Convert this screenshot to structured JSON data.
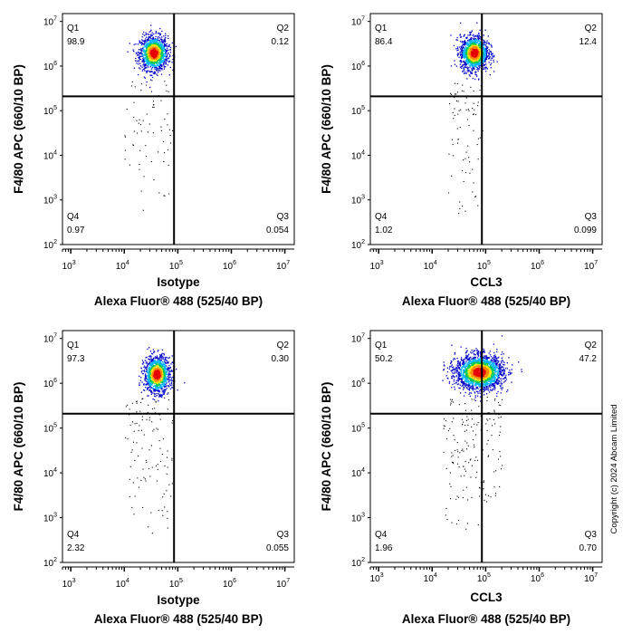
{
  "copyright": "Copyright (c) 2024 Abcam Limited",
  "colors": {
    "density_scale": [
      "#0000c8",
      "#00b4ff",
      "#00c850",
      "#ffe600",
      "#ff8c00",
      "#e60000"
    ],
    "sparse": "#000000",
    "gate": "#000000"
  },
  "chart_data": [
    {
      "type": "scatter",
      "plot_kind": "flow cytometry density dot plot",
      "xlabel_line1": "Isotype",
      "xlabel_line2": "Alexa Fluor® 488  (525/40 BP)",
      "ylabel": "F4/80 APC (660/10 BP)",
      "x_scale": "log",
      "y_scale": "log",
      "xlim": [
        700,
        15000000
      ],
      "ylim": [
        100,
        15000000
      ],
      "x_ticks": [
        "3",
        "4",
        "5",
        "6",
        "7"
      ],
      "y_ticks": [
        "2",
        "3",
        "4",
        "5",
        "6",
        "7"
      ],
      "tick_base": "10",
      "gate": {
        "x": 85000,
        "y": 210000
      },
      "quadrants": [
        {
          "name": "Q1",
          "value": "98.9"
        },
        {
          "name": "Q2",
          "value": "0.12"
        },
        {
          "name": "Q3",
          "value": "0.054"
        },
        {
          "name": "Q4",
          "value": "0.97"
        }
      ],
      "population_center": {
        "x": 35000,
        "y": 2000000
      }
    },
    {
      "type": "scatter",
      "plot_kind": "flow cytometry density dot plot",
      "xlabel_line1": "CCL3",
      "xlabel_line2": "Alexa Fluor® 488  (525/40 BP)",
      "ylabel": "F4/80 APC (660/10 BP)",
      "x_scale": "log",
      "y_scale": "log",
      "xlim": [
        700,
        15000000
      ],
      "ylim": [
        100,
        15000000
      ],
      "x_ticks": [
        "3",
        "4",
        "5",
        "6",
        "7"
      ],
      "y_ticks": [
        "2",
        "3",
        "4",
        "5",
        "6",
        "7"
      ],
      "tick_base": "10",
      "gate": {
        "x": 85000,
        "y": 210000
      },
      "quadrants": [
        {
          "name": "Q1",
          "value": "86.4"
        },
        {
          "name": "Q2",
          "value": "12.4"
        },
        {
          "name": "Q3",
          "value": "0.099"
        },
        {
          "name": "Q4",
          "value": "1.02"
        }
      ],
      "population_center": {
        "x": 60000,
        "y": 2000000
      }
    },
    {
      "type": "scatter",
      "plot_kind": "flow cytometry density dot plot",
      "xlabel_line1": "Isotype",
      "xlabel_line2": "Alexa Fluor® 488  (525/40 BP)",
      "ylabel": "F4/80 APC (660/10 BP)",
      "x_scale": "log",
      "y_scale": "log",
      "xlim": [
        700,
        15000000
      ],
      "ylim": [
        100,
        15000000
      ],
      "x_ticks": [
        "3",
        "4",
        "5",
        "6",
        "7"
      ],
      "y_ticks": [
        "2",
        "3",
        "4",
        "5",
        "6",
        "7"
      ],
      "tick_base": "10",
      "gate": {
        "x": 85000,
        "y": 210000
      },
      "quadrants": [
        {
          "name": "Q1",
          "value": "97.3"
        },
        {
          "name": "Q2",
          "value": "0.30"
        },
        {
          "name": "Q3",
          "value": "0.055"
        },
        {
          "name": "Q4",
          "value": "2.32"
        }
      ],
      "population_center": {
        "x": 40000,
        "y": 1600000
      }
    },
    {
      "type": "scatter",
      "plot_kind": "flow cytometry density dot plot",
      "xlabel_line1": "CCL3",
      "xlabel_line2": "Alexa Fluor® 488  (525/40 BP)",
      "ylabel": "F4/80 APC (660/10 BP)",
      "x_scale": "log",
      "y_scale": "log",
      "xlim": [
        700,
        15000000
      ],
      "ylim": [
        100,
        15000000
      ],
      "x_ticks": [
        "3",
        "4",
        "5",
        "6",
        "7"
      ],
      "y_ticks": [
        "2",
        "3",
        "4",
        "5",
        "6",
        "7"
      ],
      "tick_base": "10",
      "gate": {
        "x": 85000,
        "y": 210000
      },
      "quadrants": [
        {
          "name": "Q1",
          "value": "50.2"
        },
        {
          "name": "Q2",
          "value": "47.2"
        },
        {
          "name": "Q3",
          "value": "0.70"
        },
        {
          "name": "Q4",
          "value": "1.96"
        }
      ],
      "population_center": {
        "x": 75000,
        "y": 1800000
      }
    }
  ]
}
